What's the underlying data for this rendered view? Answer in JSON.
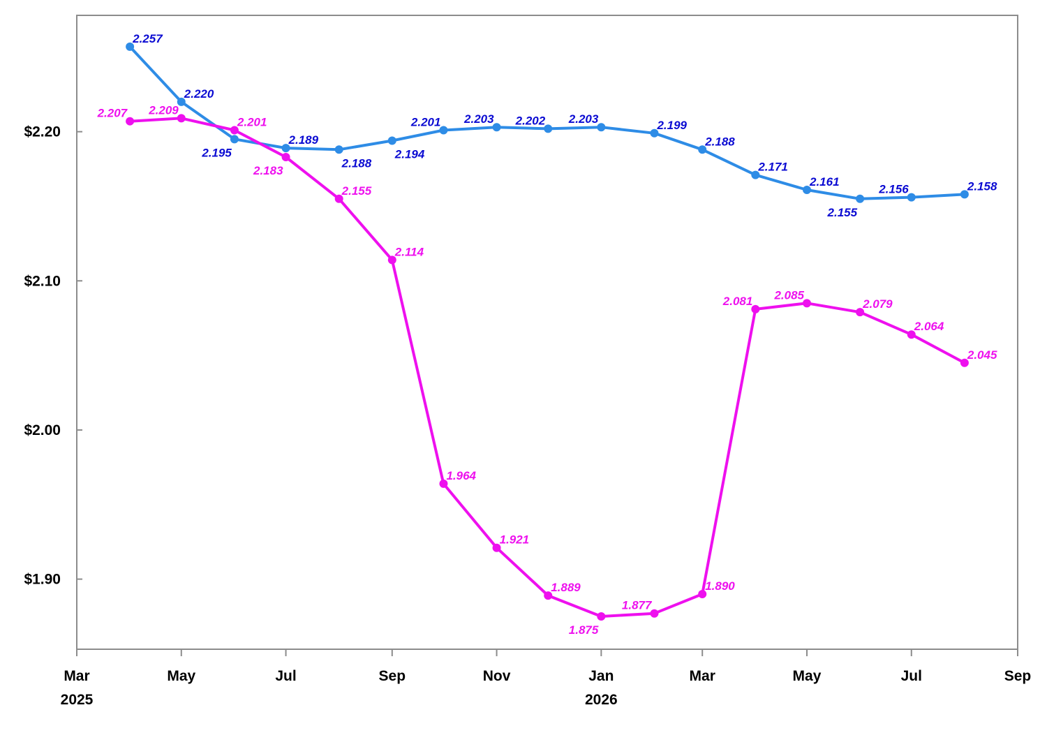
{
  "chart_data": {
    "type": "line",
    "title": "",
    "xlabel": "",
    "ylabel": "",
    "grid": false,
    "x_axis": {
      "range": [
        "2025-03-01",
        "2026-09-01"
      ],
      "ticks": [
        {
          "date": "2025-03-01",
          "label": "Mar",
          "year": "2025"
        },
        {
          "date": "2025-05-01",
          "label": "May",
          "year": ""
        },
        {
          "date": "2025-07-01",
          "label": "Jul",
          "year": ""
        },
        {
          "date": "2025-09-01",
          "label": "Sep",
          "year": ""
        },
        {
          "date": "2025-11-01",
          "label": "Nov",
          "year": ""
        },
        {
          "date": "2026-01-01",
          "label": "Jan",
          "year": "2026"
        },
        {
          "date": "2026-03-01",
          "label": "Mar",
          "year": ""
        },
        {
          "date": "2026-05-01",
          "label": "May",
          "year": ""
        },
        {
          "date": "2026-07-01",
          "label": "Jul",
          "year": ""
        },
        {
          "date": "2026-09-01",
          "label": "Sep",
          "year": ""
        }
      ]
    },
    "y_axis": {
      "range": [
        1.853,
        2.278
      ],
      "ticks": [
        {
          "value": 1.9,
          "label": "$1.90"
        },
        {
          "value": 2.0,
          "label": "$2.00"
        },
        {
          "value": 2.1,
          "label": "$2.10"
        },
        {
          "value": 2.2,
          "label": "$2.20"
        }
      ]
    },
    "series": [
      {
        "name": "",
        "color": "#2e8ce6",
        "label_color": "#0a0ad2",
        "points": [
          {
            "x": "2025-04-01",
            "y": 2.257,
            "label": "2.257",
            "pos": "ur"
          },
          {
            "x": "2025-05-01",
            "y": 2.22,
            "label": "2.220",
            "pos": "ur"
          },
          {
            "x": "2025-06-01",
            "y": 2.195,
            "label": "2.195",
            "pos": "bl"
          },
          {
            "x": "2025-07-01",
            "y": 2.189,
            "label": "2.189",
            "pos": "ur"
          },
          {
            "x": "2025-08-01",
            "y": 2.188,
            "label": "2.188",
            "pos": "br"
          },
          {
            "x": "2025-09-01",
            "y": 2.194,
            "label": "2.194",
            "pos": "br"
          },
          {
            "x": "2025-10-01",
            "y": 2.201,
            "label": "2.201",
            "pos": "ul"
          },
          {
            "x": "2025-11-01",
            "y": 2.203,
            "label": "2.203",
            "pos": "ul"
          },
          {
            "x": "2025-12-01",
            "y": 2.202,
            "label": "2.202",
            "pos": "ul"
          },
          {
            "x": "2026-01-01",
            "y": 2.203,
            "label": "2.203",
            "pos": "ul"
          },
          {
            "x": "2026-02-01",
            "y": 2.199,
            "label": "2.199",
            "pos": "ur"
          },
          {
            "x": "2026-03-01",
            "y": 2.188,
            "label": "2.188",
            "pos": "ur"
          },
          {
            "x": "2026-04-01",
            "y": 2.171,
            "label": "2.171",
            "pos": "ur"
          },
          {
            "x": "2026-05-01",
            "y": 2.161,
            "label": "2.161",
            "pos": "ur"
          },
          {
            "x": "2026-06-01",
            "y": 2.155,
            "label": "2.155",
            "pos": "bl"
          },
          {
            "x": "2026-07-01",
            "y": 2.156,
            "label": "2.156",
            "pos": "ul"
          },
          {
            "x": "2026-08-01",
            "y": 2.158,
            "label": "2.158",
            "pos": "ur"
          }
        ]
      },
      {
        "name": "",
        "color": "#ee10ee",
        "label_color": "#ee10ee",
        "points": [
          {
            "x": "2025-04-01",
            "y": 2.207,
            "label": "2.207",
            "pos": "ul"
          },
          {
            "x": "2025-05-01",
            "y": 2.209,
            "label": "2.209",
            "pos": "ul"
          },
          {
            "x": "2025-06-01",
            "y": 2.201,
            "label": "2.201",
            "pos": "ur"
          },
          {
            "x": "2025-07-01",
            "y": 2.183,
            "label": "2.183",
            "pos": "bl"
          },
          {
            "x": "2025-08-01",
            "y": 2.155,
            "label": "2.155",
            "pos": "ur"
          },
          {
            "x": "2025-09-01",
            "y": 2.114,
            "label": "2.114",
            "pos": "ur"
          },
          {
            "x": "2025-10-01",
            "y": 1.964,
            "label": "1.964",
            "pos": "ur"
          },
          {
            "x": "2025-11-01",
            "y": 1.921,
            "label": "1.921",
            "pos": "ur"
          },
          {
            "x": "2025-12-01",
            "y": 1.889,
            "label": "1.889",
            "pos": "ur"
          },
          {
            "x": "2026-01-01",
            "y": 1.875,
            "label": "1.875",
            "pos": "bl"
          },
          {
            "x": "2026-02-01",
            "y": 1.877,
            "label": "1.877",
            "pos": "ul"
          },
          {
            "x": "2026-03-01",
            "y": 1.89,
            "label": "1.890",
            "pos": "ur"
          },
          {
            "x": "2026-04-01",
            "y": 2.081,
            "label": "2.081",
            "pos": "ul"
          },
          {
            "x": "2026-05-01",
            "y": 2.085,
            "label": "2.085",
            "pos": "ul"
          },
          {
            "x": "2026-06-01",
            "y": 2.079,
            "label": "2.079",
            "pos": "ur"
          },
          {
            "x": "2026-07-01",
            "y": 2.064,
            "label": "2.064",
            "pos": "ur"
          },
          {
            "x": "2026-08-01",
            "y": 2.045,
            "label": "2.045",
            "pos": "ur"
          }
        ]
      }
    ]
  }
}
